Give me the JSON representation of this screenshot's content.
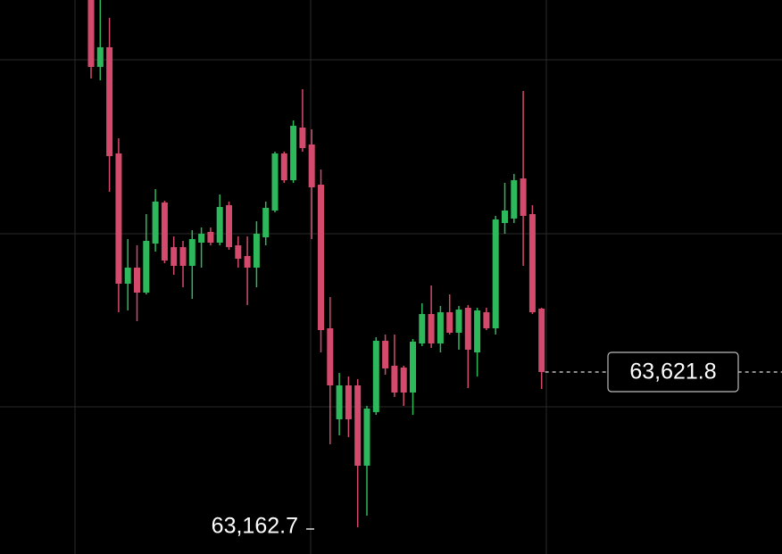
{
  "chart_data": {
    "type": "candlestick",
    "up_color": "#2eb85c",
    "down_color": "#d44a6c",
    "ylim": [
      63083.5,
      64722
    ],
    "open": [
      64722,
      64524.1,
      64582.2,
      64268.2,
      63883.0,
      63930.5,
      63856.6,
      64001.7,
      64123.1,
      63991.1,
      63991.1,
      63935.7,
      64004.3,
      64036.0,
      64004.3,
      64115.1,
      63996.4,
      63964.8,
      63930.5,
      64020.2,
      64099.3,
      64268.2,
      64189.0,
      64344.7,
      64294.6,
      64175.8,
      63751.0,
      63481.9,
      63582.2,
      63582.2,
      63344.7,
      63503.1,
      63714.1,
      63640.2,
      63634.9,
      63561.1,
      63706.2,
      63793.3,
      63706.2,
      63798.5,
      63737.9,
      63811.7,
      63679.8,
      63798.5,
      63751.0,
      64062.4,
      64075.6,
      64194.3,
      64088.8,
      63809.1
    ],
    "high": [
      64722,
      64722,
      64669.2,
      64313.0,
      64014.9,
      63996.4,
      64088.8,
      64162.6,
      64128.3,
      64022.8,
      64009.6,
      64041.3,
      64049.2,
      64049.2,
      64146.8,
      64125.7,
      64022.8,
      64022.8,
      64067.7,
      64125.7,
      64273.5,
      64273.5,
      64365.8,
      64458.2,
      64339.4,
      64220.7,
      63843.4,
      63619.0,
      63608.4,
      63600.6,
      63521.5,
      63724.7,
      63732.6,
      63732.6,
      63640.2,
      63719.4,
      63824.9,
      63877.7,
      63817.0,
      63851.3,
      63817.0,
      63819.7,
      63811.7,
      63811.7,
      64083.5,
      64181.1,
      64207.5,
      64452.9,
      64115.1,
      63811.7
    ],
    "low": [
      64489.8,
      64484.5,
      64154.7,
      63798.5,
      63803.8,
      63772.1,
      63851.3,
      63977.9,
      63943.6,
      63909.4,
      63872.4,
      63838.1,
      63930.5,
      63996.4,
      63996.4,
      63983.2,
      63930.5,
      63819.7,
      63872.4,
      63996.4,
      64094.0,
      64181.1,
      64181.1,
      64273.5,
      64014.9,
      63679.8,
      63408.1,
      63434.4,
      63429.1,
      63162.7,
      63197.0,
      63495.1,
      63613.8,
      63547.9,
      63521.5,
      63495.1,
      63698.3,
      63693.0,
      63679.8,
      63732.6,
      63687.7,
      63574.3,
      63608.4,
      63745.8,
      63732.6,
      64030.7,
      64062.4,
      63935.7,
      63793.3,
      63571.6
    ],
    "close": [
      64524.1,
      64582.2,
      64260.3,
      63883.0,
      63930.5,
      63856.6,
      64009.6,
      64125.7,
      63951.6,
      63935.7,
      63935.7,
      64014.9,
      64030.7,
      64004.3,
      64109.9,
      63991.1,
      63956.8,
      63930.5,
      64030.7,
      64107.2,
      64268.2,
      64189.0,
      64350.0,
      64284.0,
      64167.9,
      63745.8,
      63582.2,
      63582.2,
      63481.9,
      63344.7,
      63513.6,
      63714.1,
      63632.3,
      63561.1,
      63561.1,
      63711.5,
      63793.3,
      63706.2,
      63798.5,
      63737.9,
      63806.4,
      63687.7,
      63803.8,
      63751.0,
      64072.9,
      64099.3,
      64189.0,
      64083.5,
      63798.5,
      63621.8
    ],
    "last_price": {
      "value": 63621.8,
      "label": "63,621.8"
    },
    "low_marker": {
      "value": 63162.7,
      "label": "63,162.7"
    }
  }
}
